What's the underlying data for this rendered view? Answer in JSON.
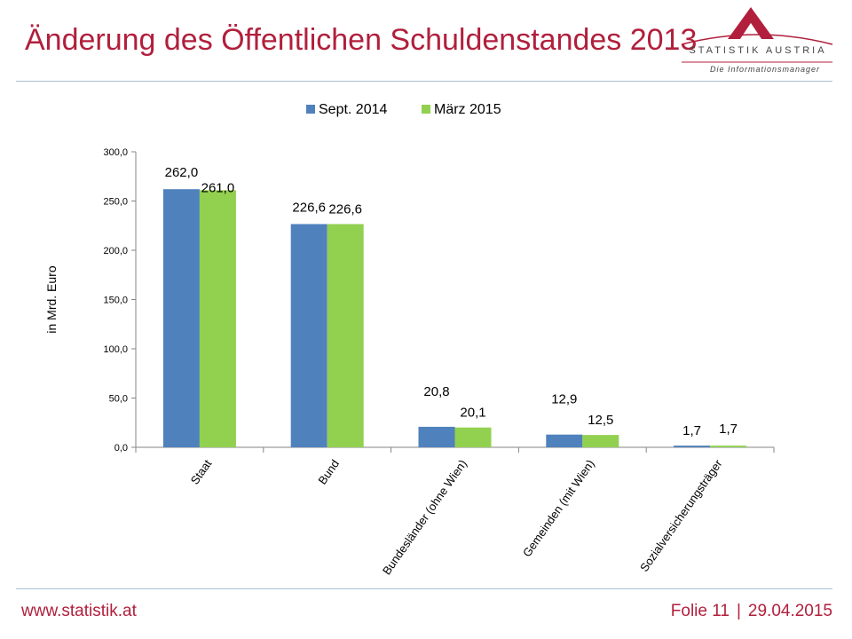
{
  "slide": {
    "title": "Änderung des Öffentlichen Schuldenstandes 2013",
    "footer_url": "www.statistik.at",
    "slide_number": "Folie 11",
    "separator": "|",
    "date": "29.04.2015"
  },
  "logo": {
    "name": "STATISTIK AUSTRIA",
    "tagline": "Die Informationsmanager"
  },
  "colors": {
    "title": "#b11f3c",
    "series_1": "#4f81bd",
    "series_2": "#92d050",
    "rule": "#a9c1d4"
  },
  "chart_data": {
    "type": "bar",
    "title": "",
    "xlabel": "",
    "ylabel": "in Mrd. Euro",
    "ylim": [
      0,
      300
    ],
    "yticks": [
      "0,0",
      "50,0",
      "100,0",
      "150,0",
      "200,0",
      "250,0",
      "300,0"
    ],
    "ytick_values": [
      0,
      50,
      100,
      150,
      200,
      250,
      300
    ],
    "legend_position": "top",
    "grid": false,
    "categories": [
      "Staat",
      "Bund",
      "Bundesländer (ohne Wien)",
      "Gemeinden (mit Wien)",
      "Sozialversicherungsträger"
    ],
    "series": [
      {
        "name": "Sept. 2014",
        "color": "#4f81bd",
        "values": [
          262.0,
          226.6,
          20.8,
          12.9,
          1.7
        ],
        "labels": [
          "262,0",
          "226,6",
          "20,8",
          "12,9",
          "1,7"
        ]
      },
      {
        "name": "März 2015",
        "color": "#92d050",
        "values": [
          261.0,
          226.6,
          20.1,
          12.5,
          1.7
        ],
        "labels": [
          "261,0",
          "226,6",
          "20,1",
          "12,5",
          "1,7"
        ]
      }
    ]
  }
}
